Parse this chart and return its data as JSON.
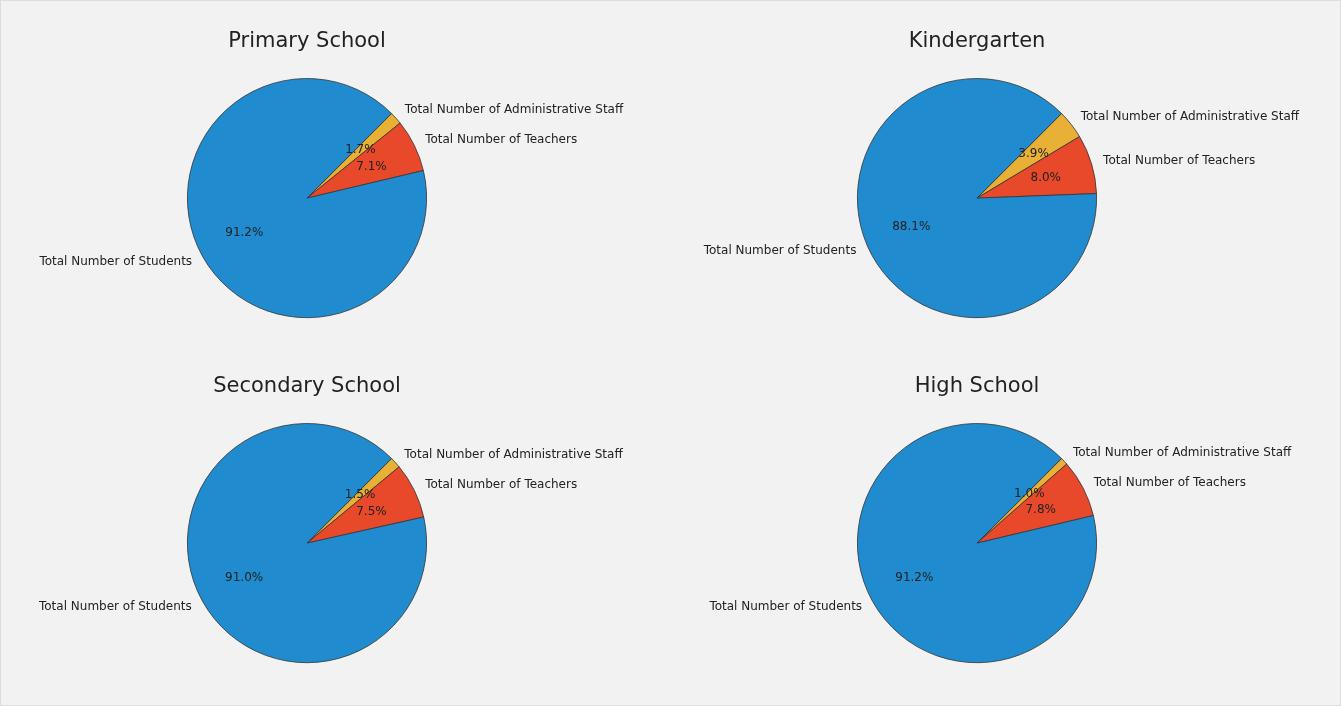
{
  "chart_data": [
    {
      "type": "pie",
      "title": "Primary School",
      "categories": [
        "Total Number of Students",
        "Total Number of Teachers",
        "Total Number of Administrative Staff"
      ],
      "values": [
        91.2,
        7.1,
        1.7
      ],
      "colors": [
        "#208ccf",
        "#e8492b",
        "#e8b034"
      ],
      "value_labels": [
        "91.2%",
        "7.1%",
        "1.7%"
      ]
    },
    {
      "type": "pie",
      "title": "Kindergarten",
      "categories": [
        "Total Number of Students",
        "Total Number of Teachers",
        "Total Number of Administrative Staff"
      ],
      "values": [
        88.1,
        8.0,
        3.9
      ],
      "colors": [
        "#208ccf",
        "#e8492b",
        "#e8b034"
      ],
      "value_labels": [
        "88.1%",
        "8.0%",
        "3.9%"
      ]
    },
    {
      "type": "pie",
      "title": "Secondary School",
      "categories": [
        "Total Number of Students",
        "Total Number of Teachers",
        "Total Number of Administrative Staff"
      ],
      "values": [
        91.0,
        7.5,
        1.5
      ],
      "colors": [
        "#208ccf",
        "#e8492b",
        "#e8b034"
      ],
      "value_labels": [
        "91.0%",
        "7.5%",
        "1.5%"
      ]
    },
    {
      "type": "pie",
      "title": "High School",
      "categories": [
        "Total Number of Students",
        "Total Number of Teachers",
        "Total Number of Administrative Staff"
      ],
      "values": [
        91.2,
        7.8,
        1.0
      ],
      "colors": [
        "#208ccf",
        "#e8492b",
        "#e8b034"
      ],
      "value_labels": [
        "91.2%",
        "7.8%",
        "1.0%"
      ]
    }
  ]
}
